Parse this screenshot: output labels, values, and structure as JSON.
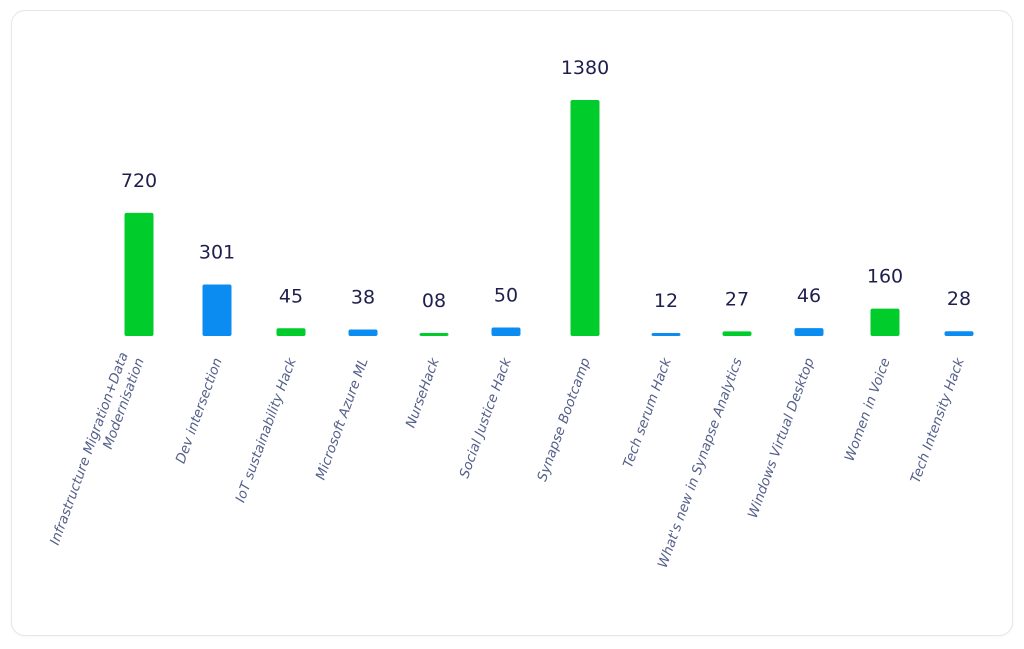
{
  "chart_data": {
    "type": "bar",
    "categories": [
      [
        "Infrastructure Migration+Data",
        "Modernisation"
      ],
      [
        "Dev intersection"
      ],
      [
        "IoT sustainability Hack"
      ],
      [
        "Microsoft Azure ML"
      ],
      [
        "NurseHack"
      ],
      [
        "Social Justice Hack"
      ],
      [
        "Synapse Bootcamp"
      ],
      [
        "Tech serum Hack"
      ],
      [
        "What's new in Synapse Analytics"
      ],
      [
        "Windows Virtual Desktop"
      ],
      [
        "Women in Voice"
      ],
      [
        "Tech Intensity Hack"
      ]
    ],
    "values": [
      720,
      301,
      45,
      38,
      8,
      50,
      1380,
      12,
      27,
      46,
      160,
      28
    ],
    "value_labels": [
      "720",
      "301",
      "45",
      "38",
      "08",
      "50",
      "1380",
      "12",
      "27",
      "46",
      "160",
      "28"
    ],
    "bar_colors": [
      "#00cc2c",
      "#0a8cf0",
      "#00cc2c",
      "#0a8cf0",
      "#00cc2c",
      "#0a8cf0",
      "#00cc2c",
      "#0a8cf0",
      "#00cc2c",
      "#0a8cf0",
      "#00cc2c",
      "#0a8cf0"
    ],
    "ylim": [
      0,
      1380
    ],
    "grid": false,
    "legend": "none"
  }
}
